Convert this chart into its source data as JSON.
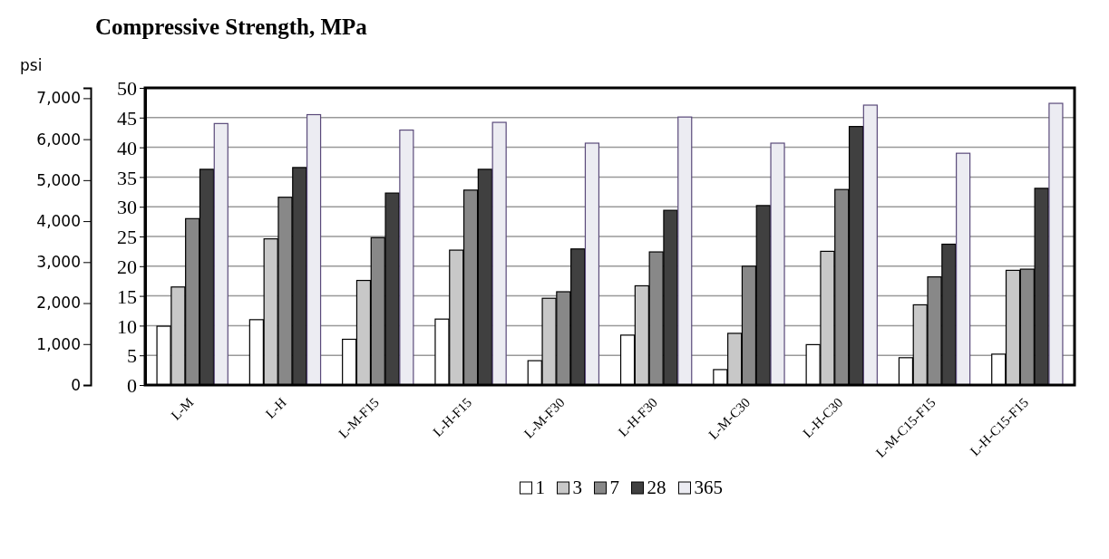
{
  "chart_data": {
    "type": "bar",
    "title": "Compressive Strength, MPa",
    "y2label": "psi",
    "categories": [
      "L-M",
      "L-H",
      "L-M-F15",
      "L-H-F15",
      "L-M-F30",
      "L-H-F30",
      "L-M-C30",
      "L-H-C30",
      "L-M-C15-F15",
      "L-H-C15-F15"
    ],
    "series": [
      {
        "name": "1",
        "color": "#ffffff",
        "values": [
          9.9,
          11,
          7.7,
          11.1,
          4.1,
          8.4,
          2.6,
          6.8,
          4.6,
          5.2
        ]
      },
      {
        "name": "3",
        "color": "#c8c8c8",
        "values": [
          16.5,
          24.6,
          17.6,
          22.7,
          14.6,
          16.7,
          8.7,
          22.5,
          13.5,
          19.3
        ]
      },
      {
        "name": "7",
        "color": "#888888",
        "values": [
          28,
          31.6,
          24.8,
          32.8,
          15.7,
          22.4,
          20,
          32.9,
          18.2,
          19.5
        ]
      },
      {
        "name": "28",
        "color": "#404040",
        "values": [
          36.3,
          36.6,
          32.3,
          36.3,
          22.9,
          29.4,
          30.2,
          43.5,
          23.7,
          33.1
        ]
      },
      {
        "name": "365",
        "color": "#ececf2",
        "values": [
          44,
          45.5,
          42.9,
          44.2,
          40.7,
          45.1,
          40.7,
          47.1,
          39,
          47.4
        ]
      }
    ],
    "ylim": [
      0,
      50
    ],
    "yticks": [
      0,
      5,
      10,
      15,
      20,
      25,
      30,
      35,
      40,
      45,
      50
    ],
    "y2lim": [
      0,
      7252
    ],
    "y2ticks": [
      {
        "value": 0,
        "label": "0"
      },
      {
        "value": 1000,
        "label": "1,000"
      },
      {
        "value": 2000,
        "label": "2,000"
      },
      {
        "value": 3000,
        "label": "3,000"
      },
      {
        "value": 4000,
        "label": "4,000"
      },
      {
        "value": 5000,
        "label": "5,000"
      },
      {
        "value": 6000,
        "label": "6,000"
      },
      {
        "value": 7000,
        "label": "7,000"
      }
    ],
    "grid": "y",
    "legend": "bottom"
  }
}
